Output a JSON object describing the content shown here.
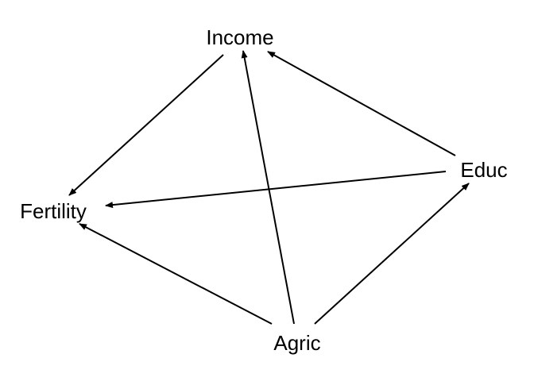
{
  "diagram": {
    "nodes": {
      "income": "Income",
      "educ": "Educ",
      "fertility": "Fertility",
      "agric": "Agric"
    },
    "edges": [
      {
        "from": "Income",
        "to": "Fertility"
      },
      {
        "from": "Educ",
        "to": "Income"
      },
      {
        "from": "Educ",
        "to": "Fertility"
      },
      {
        "from": "Agric",
        "to": "Income"
      },
      {
        "from": "Agric",
        "to": "Fertility"
      },
      {
        "from": "Agric",
        "to": "Educ"
      }
    ],
    "colors": {
      "stroke": "#000000",
      "background": "#ffffff"
    }
  }
}
